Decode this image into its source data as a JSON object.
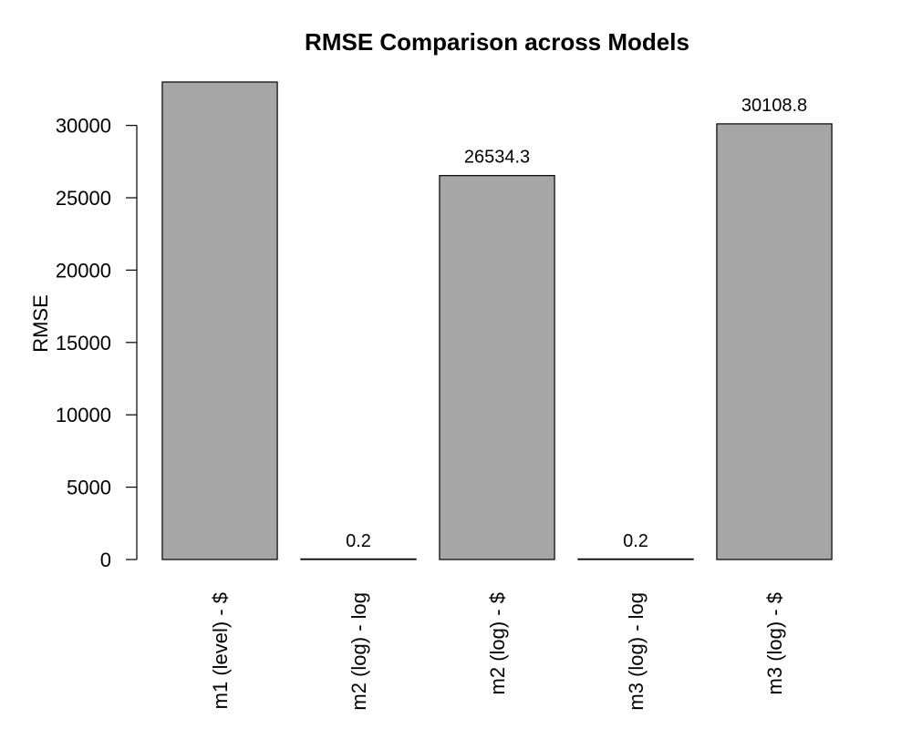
{
  "chart_data": {
    "type": "bar",
    "title": "RMSE Comparison across Models",
    "xlabel": "",
    "ylabel": "RMSE",
    "categories": [
      "m1 (level) - $",
      "m2 (log) - log",
      "m2 (log) - $",
      "m3 (log) - log",
      "m3 (log) - $"
    ],
    "values": [
      33000,
      0.2,
      26534.3,
      0.2,
      30108.8
    ],
    "data_labels": [
      "",
      "0.2",
      "26534.3",
      "0.2",
      "30108.8"
    ],
    "y_ticks": [
      0,
      5000,
      10000,
      15000,
      20000,
      25000,
      30000
    ],
    "ylim": [
      0,
      33000
    ],
    "grid": false,
    "legend": "none",
    "colors": {
      "bar_fill": "#a6a6a6",
      "bar_stroke": "#000000",
      "axis": "#000000",
      "text": "#000000"
    }
  }
}
